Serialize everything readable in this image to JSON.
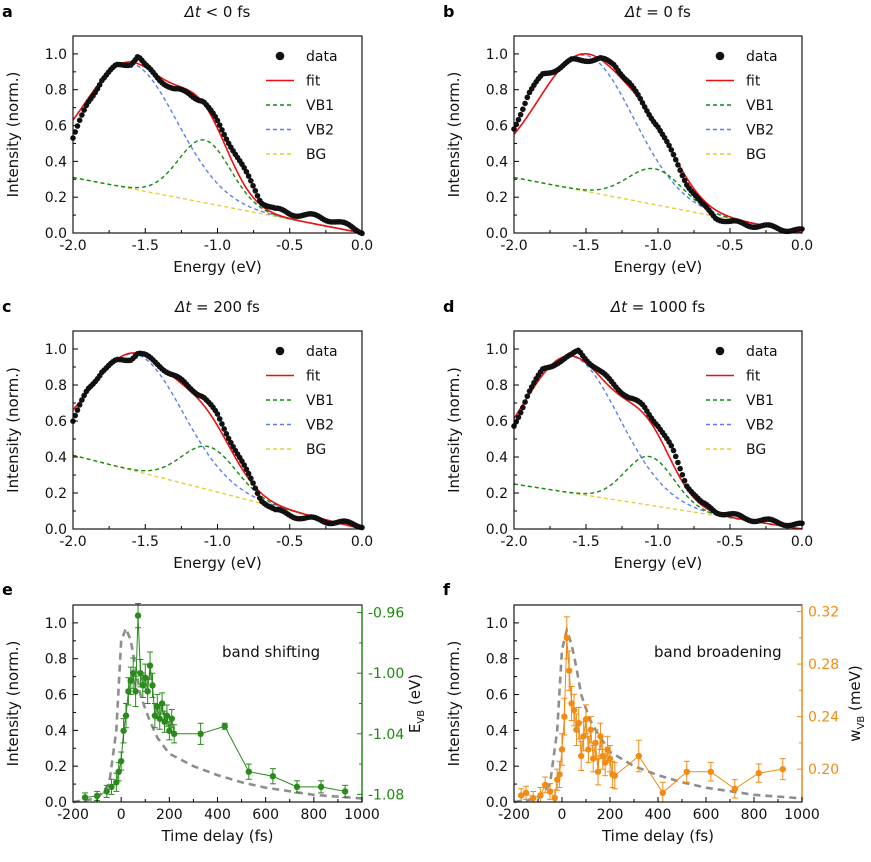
{
  "chart_data": [
    {
      "type": "scatter",
      "panel_letter": "a",
      "title_delta": "Δt",
      "title_rest": " < 0 fs",
      "xlabel": "Energy (eV)",
      "ylabel": "Intensity (norm.)",
      "xlim": [
        -2.0,
        0.0
      ],
      "ylim": [
        0.0,
        1.1
      ],
      "xticks": [
        "-2.0",
        "-1.5",
        "-1.0",
        "-0.5",
        "0.0"
      ],
      "yticks": [
        "0.0",
        "0.2",
        "0.4",
        "0.6",
        "0.8",
        "1.0"
      ],
      "legend": {
        "position": "top-right",
        "entries": [
          "data",
          "fit",
          "VB1",
          "VB2",
          "BG"
        ]
      },
      "params": {
        "vb2_amp": 0.7,
        "vb2_center": -1.6,
        "vb2_sigma": 0.32,
        "vb1_amp": 0.35,
        "vb1_center": -1.09,
        "vb1_sigma": 0.18,
        "bg_left": 0.31
      },
      "series": [
        {
          "name": "data",
          "x": [
            -2.0,
            -1.9,
            -1.8,
            -1.7,
            -1.6,
            -1.55,
            -1.5,
            -1.4,
            -1.3,
            -1.2,
            -1.1,
            -1.0,
            -0.9,
            -0.8,
            -0.7,
            -0.6,
            -0.5,
            -0.4,
            -0.3,
            -0.2,
            -0.1,
            0.0
          ],
          "y": [
            0.53,
            0.72,
            0.86,
            0.93,
            0.95,
            0.99,
            0.93,
            0.86,
            0.8,
            0.78,
            0.74,
            0.62,
            0.48,
            0.33,
            0.18,
            0.13,
            0.11,
            0.1,
            0.09,
            0.07,
            0.04,
            0.01
          ]
        }
      ]
    },
    {
      "type": "scatter",
      "panel_letter": "b",
      "title_delta": "Δt",
      "title_rest": " = 0 fs",
      "xlabel": "Energy (eV)",
      "ylabel": "Intensity (norm.)",
      "xlim": [
        -2.0,
        0.0
      ],
      "ylim": [
        0.0,
        1.1
      ],
      "xticks": [
        "-2.0",
        "-1.5",
        "-1.0",
        "-0.5",
        "0.0"
      ],
      "yticks": [
        "0.0",
        "0.2",
        "0.4",
        "0.6",
        "0.8",
        "1.0"
      ],
      "legend": {
        "position": "top-right",
        "entries": [
          "data",
          "fit",
          "VB1",
          "VB2",
          "BG"
        ]
      },
      "params": {
        "vb2_amp": 0.76,
        "vb2_center": -1.5,
        "vb2_sigma": 0.33,
        "vb1_amp": 0.2,
        "vb1_center": -1.02,
        "vb1_sigma": 0.19,
        "bg_left": 0.31
      },
      "series": [
        {
          "name": "data",
          "x": [
            -2.0,
            -1.9,
            -1.8,
            -1.7,
            -1.6,
            -1.5,
            -1.4,
            -1.3,
            -1.2,
            -1.1,
            -1.0,
            -0.9,
            -0.8,
            -0.7,
            -0.6,
            -0.5,
            -0.4,
            -0.3,
            -0.2,
            -0.1,
            0.0
          ],
          "y": [
            0.58,
            0.78,
            0.88,
            0.92,
            0.96,
            0.97,
            0.97,
            0.94,
            0.84,
            0.71,
            0.6,
            0.44,
            0.28,
            0.16,
            0.09,
            0.06,
            0.05,
            0.04,
            0.03,
            0.02,
            0.01
          ]
        }
      ]
    },
    {
      "type": "scatter",
      "panel_letter": "c",
      "title_delta": "Δt",
      "title_rest": " = 200 fs",
      "xlabel": "Energy (eV)",
      "ylabel": "Intensity (norm.)",
      "xlim": [
        -2.0,
        0.0
      ],
      "ylim": [
        0.0,
        1.1
      ],
      "xticks": [
        "-2.0",
        "-1.5",
        "-1.0",
        "-0.5",
        "0.0"
      ],
      "yticks": [
        "0.0",
        "0.2",
        "0.4",
        "0.6",
        "0.8",
        "1.0"
      ],
      "legend": {
        "position": "top-right",
        "entries": [
          "data",
          "fit",
          "VB1",
          "VB2",
          "BG"
        ]
      },
      "params": {
        "vb2_amp": 0.65,
        "vb2_center": -1.56,
        "vb2_sigma": 0.32,
        "vb1_amp": 0.24,
        "vb1_center": -1.06,
        "vb1_sigma": 0.19,
        "bg_left": 0.41
      },
      "series": [
        {
          "name": "data",
          "x": [
            -2.0,
            -1.9,
            -1.8,
            -1.7,
            -1.6,
            -1.55,
            -1.5,
            -1.4,
            -1.3,
            -1.2,
            -1.1,
            -1.0,
            -0.9,
            -0.8,
            -0.7,
            -0.6,
            -0.5,
            -0.4,
            -0.3,
            -0.2,
            -0.1,
            0.0
          ],
          "y": [
            0.6,
            0.77,
            0.88,
            0.93,
            0.95,
            0.98,
            0.96,
            0.91,
            0.85,
            0.79,
            0.74,
            0.63,
            0.48,
            0.32,
            0.17,
            0.1,
            0.08,
            0.06,
            0.05,
            0.04,
            0.03,
            0.02
          ]
        }
      ]
    },
    {
      "type": "scatter",
      "panel_letter": "d",
      "title_delta": "Δt",
      "title_rest": " = 1000 fs",
      "xlabel": "Energy (eV)",
      "ylabel": "Intensity (norm.)",
      "xlim": [
        -2.0,
        0.0
      ],
      "ylim": [
        0.0,
        1.1
      ],
      "xticks": [
        "-2.0",
        "-1.5",
        "-1.0",
        "-0.5",
        "0.0"
      ],
      "yticks": [
        "0.0",
        "0.2",
        "0.4",
        "0.6",
        "0.8",
        "1.0"
      ],
      "legend": {
        "position": "top-right",
        "entries": [
          "data",
          "fit",
          "VB1",
          "VB2",
          "BG"
        ]
      },
      "params": {
        "vb2_amp": 0.76,
        "vb2_center": -1.6,
        "vb2_sigma": 0.33,
        "vb1_amp": 0.27,
        "vb1_center": -1.06,
        "vb1_sigma": 0.17,
        "bg_left": 0.25
      },
      "series": [
        {
          "name": "data",
          "x": [
            -2.0,
            -1.9,
            -1.8,
            -1.7,
            -1.6,
            -1.55,
            -1.5,
            -1.4,
            -1.3,
            -1.2,
            -1.1,
            -1.0,
            -0.9,
            -0.8,
            -0.7,
            -0.6,
            -0.5,
            -0.4,
            -0.3,
            -0.2,
            -0.1,
            0.0
          ],
          "y": [
            0.57,
            0.76,
            0.88,
            0.93,
            0.96,
            0.99,
            0.95,
            0.87,
            0.8,
            0.73,
            0.68,
            0.58,
            0.44,
            0.25,
            0.14,
            0.1,
            0.08,
            0.06,
            0.05,
            0.04,
            0.03,
            0.02
          ]
        }
      ]
    },
    {
      "type": "line",
      "panel_letter": "e",
      "annotation": "band shifting",
      "xlabel": "Time delay (fs)",
      "ylabel": "Intensity (norm.)",
      "y2label_main": "E",
      "y2label_sub": "VB",
      "y2label_unit": " (eV)",
      "xlim": [
        -200,
        1000
      ],
      "ylim": [
        0.0,
        1.1
      ],
      "y2lim": [
        -1.085,
        -0.955
      ],
      "xticks": [
        "-200",
        "0",
        "200",
        "400",
        "600",
        "800",
        "1000"
      ],
      "yticks": [
        "0.0",
        "0.2",
        "0.4",
        "0.6",
        "0.8",
        "1.0"
      ],
      "y2ticks": [
        "-0.96",
        "-1.00",
        "-1.04",
        "-1.08"
      ],
      "series": [
        {
          "name": "intensity (norm.)",
          "axis": "left",
          "style": "dashed",
          "x": [
            -200,
            -100,
            -50,
            -20,
            0,
            20,
            40,
            60,
            80,
            100,
            120,
            150,
            200,
            300,
            400,
            500,
            600,
            700,
            800,
            900,
            1000
          ],
          "y": [
            0.0,
            0.02,
            0.1,
            0.4,
            0.9,
            0.97,
            0.9,
            0.75,
            0.6,
            0.52,
            0.45,
            0.36,
            0.27,
            0.2,
            0.15,
            0.11,
            0.08,
            0.06,
            0.04,
            0.03,
            0.02
          ]
        },
        {
          "name": "E_VB",
          "axis": "right",
          "style": "markers+line",
          "x": [
            -150,
            -100,
            -60,
            -40,
            -20,
            -10,
            0,
            10,
            20,
            30,
            40,
            50,
            60,
            70,
            80,
            90,
            100,
            110,
            120,
            130,
            140,
            150,
            160,
            170,
            180,
            190,
            200,
            210,
            220,
            330,
            430,
            530,
            630,
            730,
            830,
            930
          ],
          "y": [
            -1.082,
            -1.081,
            -1.078,
            -1.075,
            -1.072,
            -1.065,
            -1.058,
            -1.038,
            -1.028,
            -1.012,
            -1.005,
            -1.0,
            -1.012,
            -0.962,
            -1.0,
            -1.008,
            -1.003,
            -1.012,
            -0.995,
            -1.008,
            -1.028,
            -1.022,
            -1.03,
            -1.02,
            -1.032,
            -1.028,
            -1.038,
            -1.03,
            -1.04,
            -1.04,
            -1.035,
            -1.065,
            -1.068,
            -1.075,
            -1.075,
            -1.078
          ],
          "err": [
            0.003,
            0.003,
            0.004,
            0.005,
            0.006,
            0.006,
            0.006,
            0.008,
            0.008,
            0.009,
            0.009,
            0.01,
            0.01,
            0.008,
            0.009,
            0.008,
            0.009,
            0.008,
            0.009,
            0.008,
            0.008,
            0.008,
            0.007,
            0.007,
            0.007,
            0.007,
            0.006,
            0.006,
            0.006,
            0.007,
            0.002,
            0.005,
            0.005,
            0.004,
            0.004,
            0.004
          ]
        }
      ]
    },
    {
      "type": "line",
      "panel_letter": "f",
      "annotation": "band broadening",
      "xlabel": "Time delay (fs)",
      "ylabel": "Intensity (norm.)",
      "y2label_main": "w",
      "y2label_sub": "VB",
      "y2label_unit": " (meV)",
      "xlim": [
        -200,
        1000
      ],
      "ylim": [
        0.0,
        1.1
      ],
      "y2lim": [
        0.175,
        0.325
      ],
      "xticks": [
        "-200",
        "0",
        "200",
        "400",
        "600",
        "800",
        "1000"
      ],
      "yticks": [
        "0.0",
        "0.2",
        "0.4",
        "0.6",
        "0.8",
        "1.0"
      ],
      "y2ticks": [
        "0.32",
        "0.28",
        "0.24",
        "0.20"
      ],
      "series": [
        {
          "name": "intensity (norm.)",
          "axis": "left",
          "style": "dashed",
          "x": [
            -200,
            -100,
            -50,
            -20,
            0,
            20,
            40,
            60,
            80,
            100,
            120,
            150,
            200,
            300,
            400,
            500,
            600,
            700,
            800,
            900,
            1000
          ],
          "y": [
            0.0,
            0.02,
            0.1,
            0.4,
            0.85,
            0.96,
            0.88,
            0.75,
            0.6,
            0.52,
            0.45,
            0.38,
            0.28,
            0.2,
            0.15,
            0.11,
            0.08,
            0.06,
            0.04,
            0.03,
            0.02
          ]
        },
        {
          "name": "w_VB",
          "axis": "right",
          "style": "markers+line",
          "x": [
            -170,
            -150,
            -120,
            -90,
            -70,
            -50,
            -30,
            -20,
            -10,
            0,
            10,
            20,
            30,
            40,
            50,
            60,
            70,
            80,
            90,
            100,
            110,
            120,
            130,
            140,
            150,
            160,
            170,
            180,
            190,
            200,
            210,
            220,
            320,
            420,
            520,
            620,
            720,
            820,
            920
          ],
          "y": [
            0.18,
            0.182,
            0.178,
            0.18,
            0.188,
            0.183,
            0.178,
            0.192,
            0.196,
            0.215,
            0.24,
            0.3,
            0.275,
            0.25,
            0.245,
            0.23,
            0.235,
            0.21,
            0.225,
            0.238,
            0.215,
            0.23,
            0.208,
            0.22,
            0.198,
            0.225,
            0.21,
            0.205,
            0.215,
            0.208,
            0.196,
            0.195,
            0.21,
            0.182,
            0.198,
            0.198,
            0.185,
            0.197,
            0.2
          ],
          "err": [
            0.005,
            0.005,
            0.005,
            0.006,
            0.006,
            0.006,
            0.006,
            0.008,
            0.01,
            0.012,
            0.014,
            0.016,
            0.015,
            0.013,
            0.012,
            0.012,
            0.012,
            0.011,
            0.011,
            0.011,
            0.01,
            0.01,
            0.01,
            0.01,
            0.01,
            0.01,
            0.01,
            0.01,
            0.01,
            0.01,
            0.01,
            0.01,
            0.012,
            0.008,
            0.008,
            0.007,
            0.007,
            0.007,
            0.008
          ]
        }
      ]
    }
  ],
  "colors": {
    "data": "#111111",
    "fit": "#ee1111",
    "vb1": "#138a13",
    "vb2": "#5b7ff0",
    "bg": "#e3cf3a",
    "intensity": "#8e8e8e",
    "e_vb": "#2a8a1c",
    "e_vb_axis": "#1d8a0e",
    "w_vb": "#f08c14",
    "w_vb_axis": "#f08c14"
  }
}
